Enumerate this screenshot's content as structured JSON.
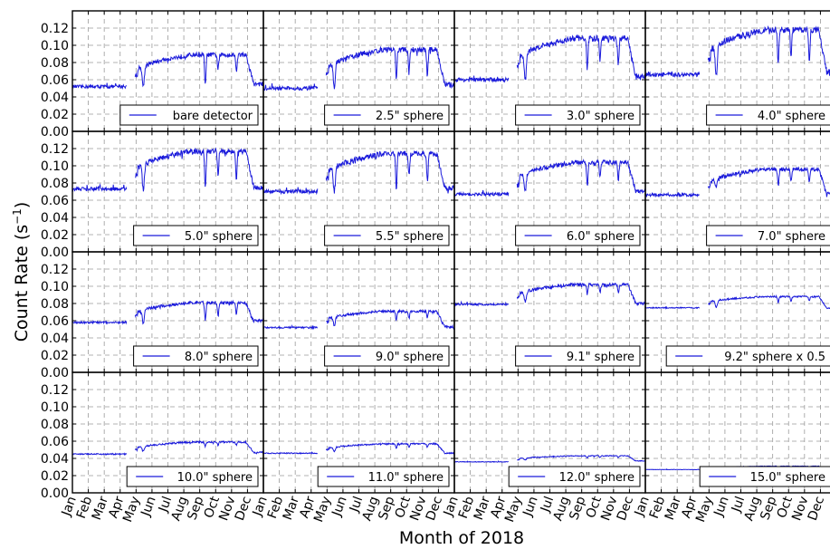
{
  "figure": {
    "ylabel_main": "Count Rate (s",
    "ylabel_sup": "−1",
    "ylabel_close": ")",
    "xlabel": "Month of 2018"
  },
  "chart_data": {
    "type": "line",
    "layout": "4x4 small multiples, shared axes",
    "xlabel": "Month of 2018",
    "ylabel": "Count Rate (s^-1)",
    "ylim": [
      0.0,
      0.14
    ],
    "yticks": [
      0.0,
      0.02,
      0.04,
      0.06,
      0.08,
      0.1,
      0.12
    ],
    "ytick_labels": [
      "0.00",
      "0.02",
      "0.04",
      "0.06",
      "0.08",
      "0.10",
      "0.12"
    ],
    "xticks": [
      "Jan",
      "Feb",
      "Mar",
      "Apr",
      "May",
      "Jun",
      "Jul",
      "Aug",
      "Sep",
      "Oct",
      "Nov",
      "Dec"
    ],
    "grid": true,
    "line_color": "#1a1adb",
    "legend_placement": "lower-right",
    "panels": [
      {
        "label": "bare detector",
        "pre": 0.052,
        "plateau": 0.089,
        "dips": [
          0.053,
          0.072,
          0.07
        ],
        "end": 0.055,
        "dip_start": 0.052
      },
      {
        "label": "2.5\" sphere",
        "pre": 0.05,
        "plateau": 0.095,
        "dips": [
          0.061,
          0.069,
          0.063
        ],
        "end": 0.054,
        "dip_start": 0.052
      },
      {
        "label": "3.0\" sphere",
        "pre": 0.06,
        "plateau": 0.108,
        "dips": [
          0.071,
          0.081,
          0.077
        ],
        "end": 0.063,
        "dip_start": 0.06
      },
      {
        "label": "4.0\" sphere",
        "pre": 0.066,
        "plateau": 0.118,
        "dips": [
          0.077,
          0.085,
          0.083
        ],
        "end": 0.069,
        "dip_start": 0.063
      },
      {
        "label": "5.0\" sphere",
        "pre": 0.073,
        "plateau": 0.117,
        "dips": [
          0.073,
          0.089,
          0.081
        ],
        "end": 0.075,
        "dip_start": 0.072
      },
      {
        "label": "5.5\" sphere",
        "pre": 0.07,
        "plateau": 0.114,
        "dips": [
          0.072,
          0.089,
          0.082
        ],
        "end": 0.074,
        "dip_start": 0.07
      },
      {
        "label": "6.0\" sphere",
        "pre": 0.067,
        "plateau": 0.104,
        "dips": [
          0.078,
          0.085,
          0.083
        ],
        "end": 0.071,
        "dip_start": 0.071
      },
      {
        "label": "7.0\" sphere",
        "pre": 0.066,
        "plateau": 0.096,
        "dips": [
          0.076,
          0.081,
          0.08
        ],
        "end": 0.068,
        "dip_start": 0.075
      },
      {
        "label": "8.0\" sphere",
        "pre": 0.058,
        "plateau": 0.081,
        "dips": [
          0.06,
          0.065,
          0.066
        ],
        "end": 0.06,
        "dip_start": 0.057
      },
      {
        "label": "9.0\" sphere",
        "pre": 0.052,
        "plateau": 0.071,
        "dips": [
          0.06,
          0.063,
          0.063
        ],
        "end": 0.053,
        "dip_start": 0.055
      },
      {
        "label": "9.1\" sphere",
        "pre": 0.079,
        "plateau": 0.102,
        "dips": [
          0.091,
          0.093,
          0.093
        ],
        "end": 0.08,
        "dip_start": 0.082
      },
      {
        "label": "9.2\" sphere x 0.5",
        "pre": 0.075,
        "plateau": 0.088,
        "dips": [
          0.081,
          0.083,
          0.083
        ],
        "end": 0.075,
        "dip_start": 0.075
      },
      {
        "label": "10.0\" sphere",
        "pre": 0.045,
        "plateau": 0.059,
        "dips": [
          0.054,
          0.055,
          0.055
        ],
        "end": 0.047,
        "dip_start": 0.049
      },
      {
        "label": "11.0\" sphere",
        "pre": 0.046,
        "plateau": 0.057,
        "dips": [
          0.052,
          0.053,
          0.053
        ],
        "end": 0.046,
        "dip_start": 0.048
      },
      {
        "label": "12.0\" sphere",
        "pre": 0.036,
        "plateau": 0.043,
        "dips": [
          0.04,
          0.041,
          0.041
        ],
        "end": 0.037,
        "dip_start": 0.038
      },
      {
        "label": "15.0\" sphere",
        "pre": 0.027,
        "plateau": 0.031,
        "dips": [
          0.029,
          0.029,
          0.029
        ],
        "end": 0.027,
        "dip_start": 0.028
      }
    ]
  }
}
